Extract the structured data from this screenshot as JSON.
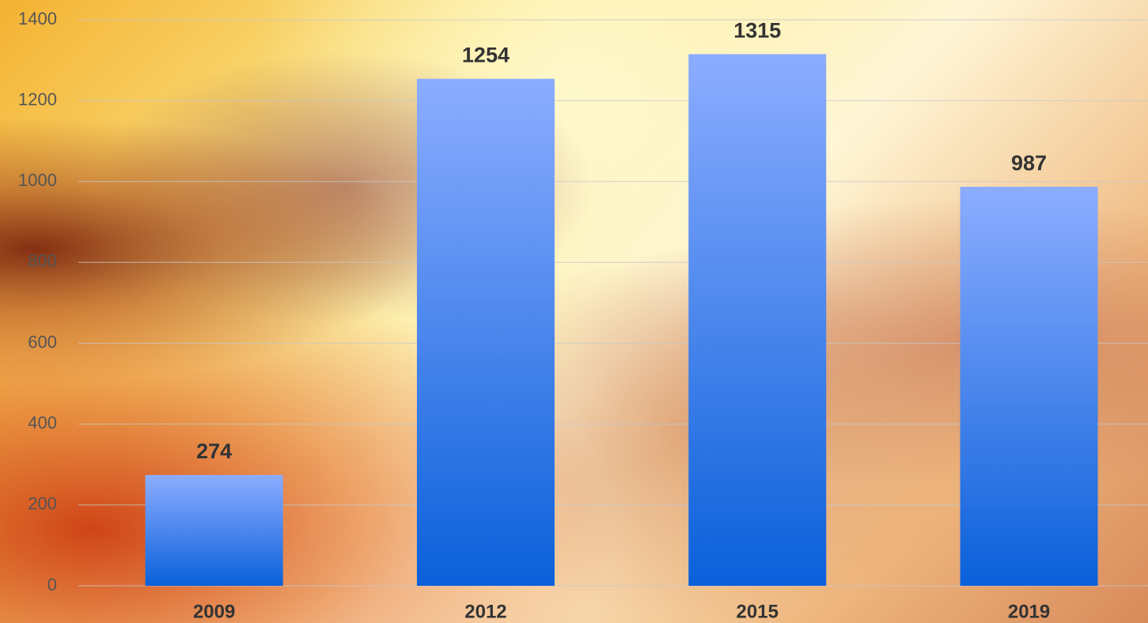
{
  "chart_data": {
    "type": "bar",
    "categories": [
      "2009",
      "2012",
      "2015",
      "2019"
    ],
    "values": [
      274,
      1254,
      1315,
      987
    ],
    "color": "#0a60da",
    "ylim": [
      0,
      1400
    ],
    "yticks": [
      0,
      200,
      400,
      600,
      800,
      1000,
      1200,
      1400
    ],
    "grid": true
  }
}
